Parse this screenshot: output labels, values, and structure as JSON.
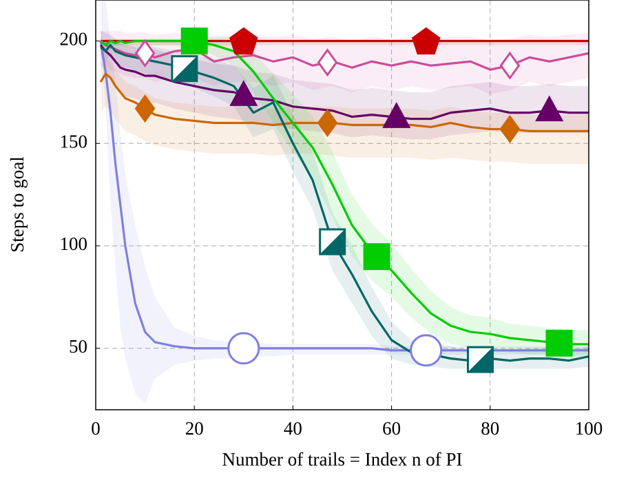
{
  "chart_data": {
    "type": "line",
    "x_label": "Number of trails = Index n of PI",
    "y_label": "Steps to goal",
    "xlim": [
      0,
      100
    ],
    "ylim": [
      20,
      220
    ],
    "xticks": [
      0,
      20,
      40,
      60,
      80,
      100
    ],
    "yticks": [
      50,
      100,
      150,
      200
    ],
    "grid": true,
    "x": [
      1,
      2,
      3,
      4,
      5,
      6,
      8,
      10,
      12,
      16,
      20,
      24,
      28,
      32,
      36,
      40,
      44,
      48,
      52,
      56,
      60,
      64,
      68,
      72,
      76,
      80,
      84,
      88,
      92,
      96,
      100
    ],
    "series": [
      {
        "color": "#7f7fdf",
        "marker": "circle",
        "marker_fill": "open",
        "marker_x": [
          30,
          67
        ],
        "values": [
          200,
          185,
          165,
          140,
          120,
          100,
          72,
          58,
          53,
          51,
          50,
          50,
          50,
          50,
          50,
          50,
          50,
          50,
          50,
          50,
          49,
          49,
          49,
          49,
          49,
          49,
          49,
          49,
          49,
          49,
          49
        ],
        "lower": [
          195,
          170,
          120,
          90,
          60,
          45,
          28,
          23,
          35,
          42,
          44,
          45,
          45,
          46,
          46,
          47,
          47,
          47,
          47,
          47,
          47,
          47,
          47,
          47,
          47,
          47,
          47,
          47,
          47,
          47,
          47
        ],
        "upper": [
          220,
          220,
          200,
          180,
          155,
          135,
          110,
          90,
          75,
          60,
          56,
          54,
          53,
          53,
          52,
          52,
          52,
          52,
          52,
          52,
          51,
          51,
          51,
          51,
          51,
          51,
          51,
          51,
          51,
          51,
          51
        ]
      },
      {
        "color": "#cc0000",
        "marker": "pentagon",
        "marker_fill": "filled",
        "marker_x": [
          30,
          67
        ],
        "values": [
          200,
          200,
          200,
          200,
          200,
          200,
          200,
          200,
          200,
          200,
          200,
          200,
          200,
          200,
          200,
          200,
          200,
          200,
          200,
          200,
          200,
          200,
          200,
          200,
          200,
          200,
          200,
          200,
          200,
          200,
          200
        ],
        "lower": [
          198,
          198,
          198,
          198,
          198,
          198,
          198,
          198,
          198,
          198,
          198,
          198,
          198,
          198,
          198,
          198,
          198,
          198,
          198,
          198,
          198,
          198,
          198,
          198,
          198,
          198,
          198,
          198,
          198,
          198,
          198
        ],
        "upper": [
          200,
          200,
          200,
          200,
          200,
          200,
          200,
          200,
          200,
          200,
          200,
          200,
          200,
          200,
          200,
          200,
          200,
          200,
          200,
          200,
          200,
          200,
          200,
          200,
          200,
          200,
          200,
          200,
          200,
          200,
          200
        ]
      },
      {
        "color": "#cc4c99",
        "marker": "diamond",
        "marker_fill": "open",
        "marker_x": [
          10,
          47,
          84
        ],
        "values": [
          200,
          198,
          197,
          196,
          195,
          194,
          193,
          194,
          192,
          195,
          196,
          190,
          192,
          193,
          190,
          192,
          188,
          190,
          187,
          190,
          188,
          190,
          188,
          189,
          190,
          186,
          188,
          192,
          190,
          192,
          194
        ],
        "lower": [
          192,
          188,
          186,
          185,
          184,
          183,
          182,
          182,
          180,
          182,
          182,
          178,
          180,
          180,
          178,
          180,
          176,
          178,
          175,
          178,
          176,
          178,
          176,
          177,
          178,
          174,
          176,
          180,
          178,
          180,
          182
        ],
        "upper": [
          205,
          205,
          205,
          205,
          205,
          204,
          204,
          204,
          203,
          204,
          204,
          202,
          203,
          203,
          202,
          203,
          201,
          202,
          200,
          202,
          201,
          202,
          201,
          202,
          202,
          200,
          201,
          203,
          202,
          203,
          204
        ]
      },
      {
        "color": "#660066",
        "marker": "triangle",
        "marker_fill": "filled",
        "marker_x": [
          30,
          61,
          92
        ],
        "values": [
          198,
          195,
          193,
          190,
          187,
          186,
          185,
          183,
          183,
          180,
          178,
          176,
          175,
          172,
          171,
          168,
          167,
          166,
          163,
          164,
          163,
          162,
          162,
          165,
          166,
          167,
          165,
          165,
          166,
          165,
          165
        ],
        "lower": [
          188,
          185,
          182,
          178,
          175,
          173,
          172,
          170,
          170,
          167,
          165,
          163,
          162,
          160,
          159,
          157,
          156,
          155,
          153,
          154,
          153,
          152,
          152,
          154,
          155,
          156,
          155,
          155,
          155,
          155,
          155
        ],
        "upper": [
          205,
          204,
          203,
          201,
          199,
          198,
          197,
          196,
          196,
          193,
          191,
          189,
          188,
          185,
          184,
          181,
          180,
          179,
          176,
          177,
          176,
          175,
          175,
          178,
          179,
          180,
          178,
          178,
          179,
          178,
          178
        ]
      },
      {
        "color": "#cc6600",
        "marker": "diamond",
        "marker_fill": "filled",
        "marker_x": [
          10,
          47,
          84
        ],
        "values": [
          180,
          184,
          182,
          178,
          175,
          172,
          170,
          167,
          164,
          162,
          161,
          160,
          160,
          160,
          159,
          160,
          160,
          160,
          159,
          159,
          159,
          159,
          158,
          160,
          158,
          157,
          157,
          156,
          156,
          156,
          156
        ],
        "lower": [
          165,
          168,
          166,
          162,
          159,
          156,
          154,
          151,
          149,
          147,
          146,
          145,
          145,
          145,
          144,
          145,
          145,
          144,
          143,
          143,
          143,
          143,
          142,
          143,
          142,
          141,
          141,
          140,
          140,
          140,
          140
        ],
        "upper": [
          188,
          191,
          190,
          186,
          183,
          180,
          178,
          175,
          172,
          170,
          169,
          168,
          168,
          168,
          167,
          168,
          168,
          168,
          167,
          167,
          167,
          167,
          166,
          168,
          166,
          165,
          165,
          164,
          164,
          164,
          164
        ]
      },
      {
        "color": "#006666",
        "marker": "half-square",
        "marker_fill": "half",
        "marker_x": [
          18,
          48,
          78
        ],
        "values": [
          197,
          195,
          198,
          195,
          194,
          193,
          192,
          191,
          190,
          188,
          185,
          182,
          178,
          165,
          170,
          150,
          132,
          102,
          86,
          68,
          54,
          48,
          47,
          45,
          44,
          45,
          44,
          45,
          45,
          44,
          46
        ],
        "lower": [
          193,
          190,
          193,
          190,
          188,
          187,
          186,
          184,
          183,
          181,
          177,
          173,
          168,
          153,
          157,
          136,
          118,
          88,
          72,
          56,
          45,
          42,
          41,
          40,
          40,
          40,
          40,
          40,
          40,
          40,
          41
        ],
        "upper": [
          200,
          200,
          201,
          199,
          199,
          198,
          198,
          197,
          197,
          195,
          193,
          191,
          188,
          177,
          183,
          164,
          146,
          116,
          100,
          80,
          63,
          54,
          53,
          51,
          49,
          50,
          49,
          50,
          50,
          49,
          51
        ]
      },
      {
        "color": "#00cc00",
        "marker": "square",
        "marker_fill": "filled",
        "marker_x": [
          20,
          57,
          94
        ],
        "values": [
          200,
          198,
          200,
          199,
          200,
          199,
          200,
          200,
          200,
          200,
          200,
          198,
          195,
          185,
          172,
          160,
          148,
          130,
          110,
          97,
          88,
          77,
          67,
          61,
          58,
          57,
          55,
          54,
          53,
          52,
          52
        ],
        "lower": [
          198,
          196,
          198,
          197,
          198,
          197,
          198,
          198,
          198,
          198,
          197,
          193,
          188,
          175,
          160,
          146,
          133,
          114,
          95,
          83,
          75,
          65,
          57,
          52,
          50,
          49,
          48,
          47,
          47,
          46,
          46
        ],
        "upper": [
          201,
          200,
          201,
          201,
          201,
          201,
          201,
          201,
          201,
          201,
          201,
          202,
          202,
          195,
          184,
          174,
          163,
          146,
          125,
          111,
          101,
          89,
          78,
          70,
          66,
          65,
          62,
          61,
          60,
          59,
          59
        ]
      }
    ]
  }
}
